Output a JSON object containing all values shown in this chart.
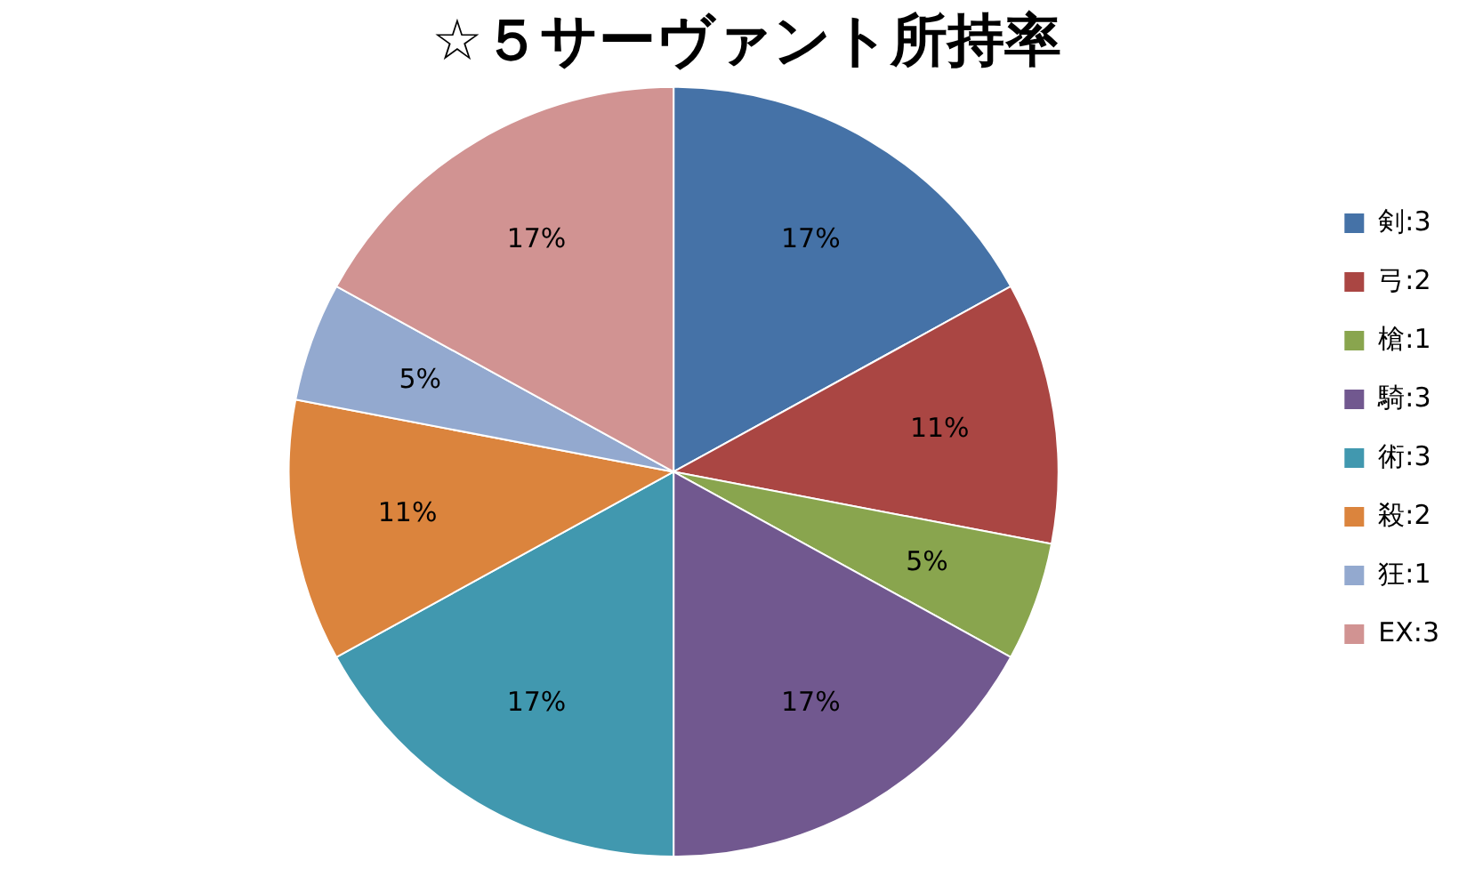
{
  "chart_data": {
    "type": "pie",
    "title": "☆５サーヴァント所持率",
    "categories": [
      "剣:3",
      "弓:2",
      "槍:1",
      "騎:3",
      "術:3",
      "殺:2",
      "狂:1",
      "EX:3"
    ],
    "values": [
      17,
      11,
      5,
      17,
      17,
      11,
      5,
      17
    ],
    "colors": [
      "#4572a7",
      "#aa4643",
      "#89a54e",
      "#71588f",
      "#4198af",
      "#db843d",
      "#93a9cf",
      "#d19392"
    ],
    "value_labels": [
      "17%",
      "11%",
      "5%",
      "17%",
      "17%",
      "11%",
      "5%",
      "17%"
    ],
    "legend": "right"
  }
}
